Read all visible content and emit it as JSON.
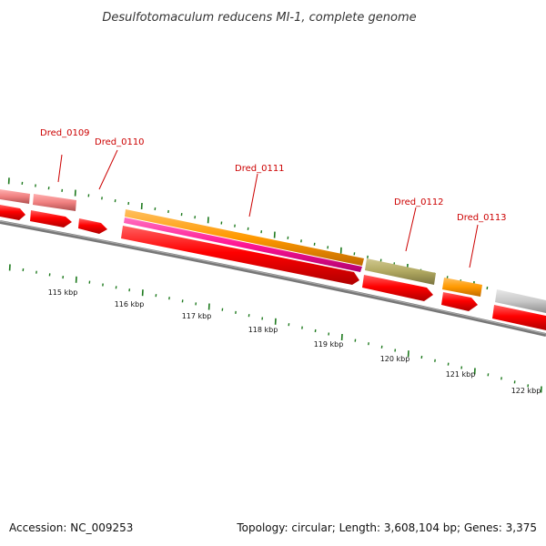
{
  "title": "Desulfotomaculum reducens MI-1, complete genome",
  "footer": {
    "accession": "Accession: NC_009253",
    "summary": "Topology: circular; Length: 3,608,104 bp; Genes: 3,375"
  },
  "colors": {
    "cds": "#ff0000",
    "cds_light": "#f08080",
    "orange": "#ff9900",
    "magenta": "#ff1493",
    "olive": "#b0a860",
    "grey_feature": "#c8c8c8",
    "backbone": "#777777",
    "ticks": "#1e7a1e",
    "labels": "#cc0000"
  },
  "gene_labels": [
    "Dred_0109",
    "Dred_0110",
    "Dred_0111",
    "Dred_0112",
    "Dred_0113"
  ],
  "kbp_labels": [
    "115 kbp",
    "116 kbp",
    "117 kbp",
    "118 kbp",
    "119 kbp",
    "120 kbp",
    "121 kbp",
    "122 kbp"
  ]
}
